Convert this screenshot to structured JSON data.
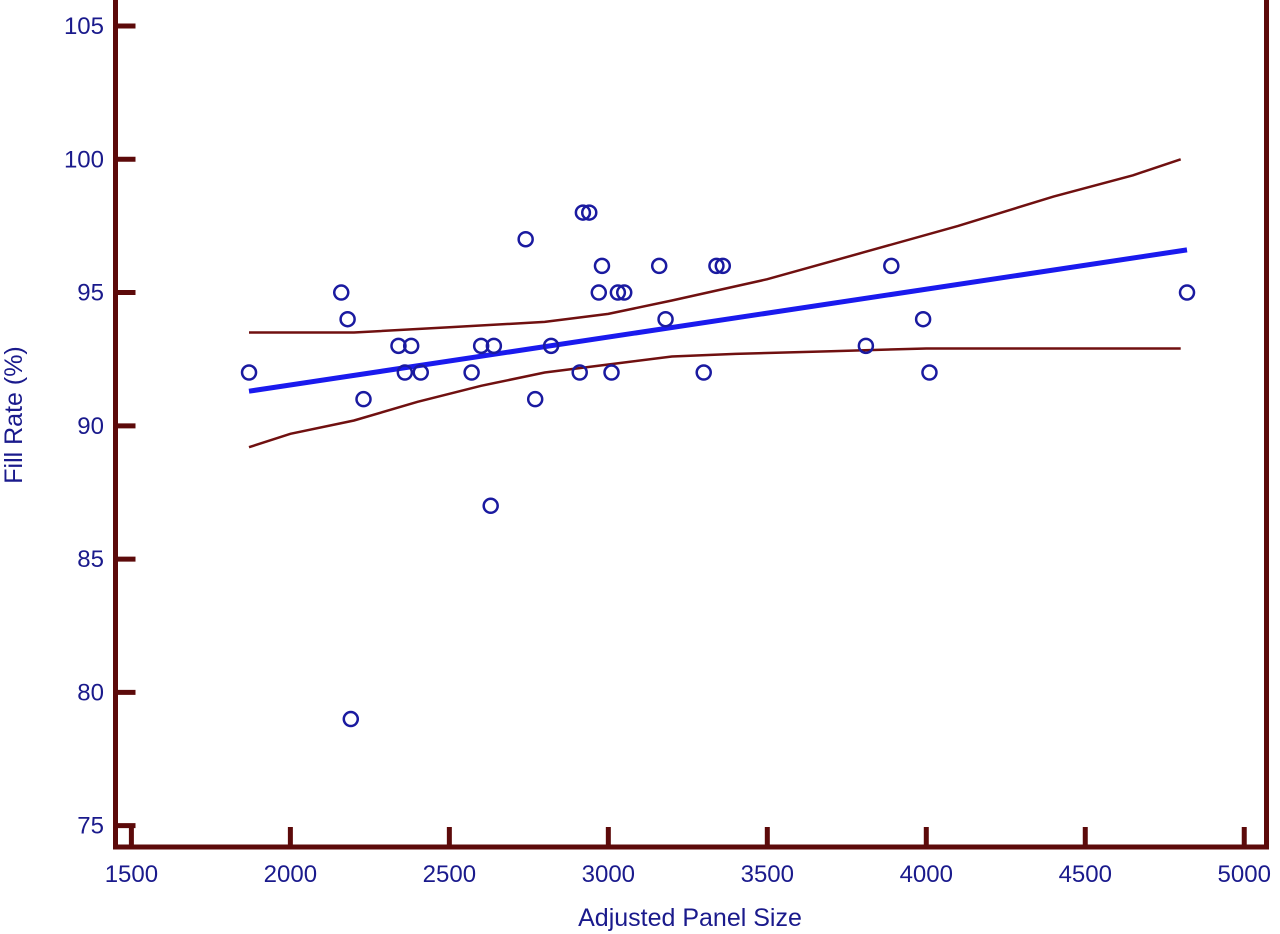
{
  "chart_data": {
    "type": "scatter",
    "title": "",
    "xlabel": "Adjusted Panel Size",
    "ylabel": "Fill Rate (%)",
    "xlim": [
      1450,
      5070
    ],
    "ylim": [
      74.2,
      106.2
    ],
    "xticks": [
      1500,
      2000,
      2500,
      3000,
      3500,
      4000,
      4500,
      5000
    ],
    "yticks": [
      75,
      80,
      85,
      90,
      95,
      100,
      105
    ],
    "grid": false,
    "legend": "none",
    "colors": {
      "frame": "#5c0a0a",
      "points": "#1a1aa0",
      "fit_line": "#1a1aee",
      "band_lines": "#701010",
      "text": "#1a1a8c"
    },
    "points": [
      {
        "x": 1870,
        "y": 92
      },
      {
        "x": 2160,
        "y": 95
      },
      {
        "x": 2180,
        "y": 94
      },
      {
        "x": 2190,
        "y": 79
      },
      {
        "x": 2230,
        "y": 91
      },
      {
        "x": 2340,
        "y": 93
      },
      {
        "x": 2360,
        "y": 92
      },
      {
        "x": 2380,
        "y": 93
      },
      {
        "x": 2410,
        "y": 92
      },
      {
        "x": 2570,
        "y": 92
      },
      {
        "x": 2600,
        "y": 93
      },
      {
        "x": 2630,
        "y": 87
      },
      {
        "x": 2640,
        "y": 93
      },
      {
        "x": 2740,
        "y": 97
      },
      {
        "x": 2770,
        "y": 91
      },
      {
        "x": 2820,
        "y": 93
      },
      {
        "x": 2910,
        "y": 92
      },
      {
        "x": 2920,
        "y": 98
      },
      {
        "x": 2940,
        "y": 98
      },
      {
        "x": 2970,
        "y": 95
      },
      {
        "x": 2980,
        "y": 96
      },
      {
        "x": 3010,
        "y": 92
      },
      {
        "x": 3030,
        "y": 95
      },
      {
        "x": 3050,
        "y": 95
      },
      {
        "x": 3160,
        "y": 96
      },
      {
        "x": 3180,
        "y": 94
      },
      {
        "x": 3300,
        "y": 92
      },
      {
        "x": 3340,
        "y": 96
      },
      {
        "x": 3360,
        "y": 96
      },
      {
        "x": 3810,
        "y": 93
      },
      {
        "x": 3890,
        "y": 96
      },
      {
        "x": 3990,
        "y": 94
      },
      {
        "x": 4010,
        "y": 92
      },
      {
        "x": 4820,
        "y": 95
      }
    ],
    "fit_line": {
      "x": [
        1870,
        4820
      ],
      "y": [
        91.3,
        96.6
      ]
    },
    "upper_band": {
      "x": [
        1870,
        2200,
        2500,
        2800,
        3000,
        3200,
        3500,
        3800,
        4100,
        4400,
        4650,
        4800
      ],
      "y": [
        93.5,
        93.5,
        93.7,
        93.9,
        94.2,
        94.7,
        95.5,
        96.5,
        97.5,
        98.6,
        99.4,
        100.0
      ]
    },
    "lower_band": {
      "x": [
        1870,
        2000,
        2200,
        2400,
        2600,
        2800,
        3000,
        3200,
        3400,
        3700,
        4000,
        4400,
        4800
      ],
      "y": [
        89.2,
        89.7,
        90.2,
        90.9,
        91.5,
        92.0,
        92.3,
        92.6,
        92.7,
        92.8,
        92.9,
        92.9,
        92.9
      ]
    }
  }
}
